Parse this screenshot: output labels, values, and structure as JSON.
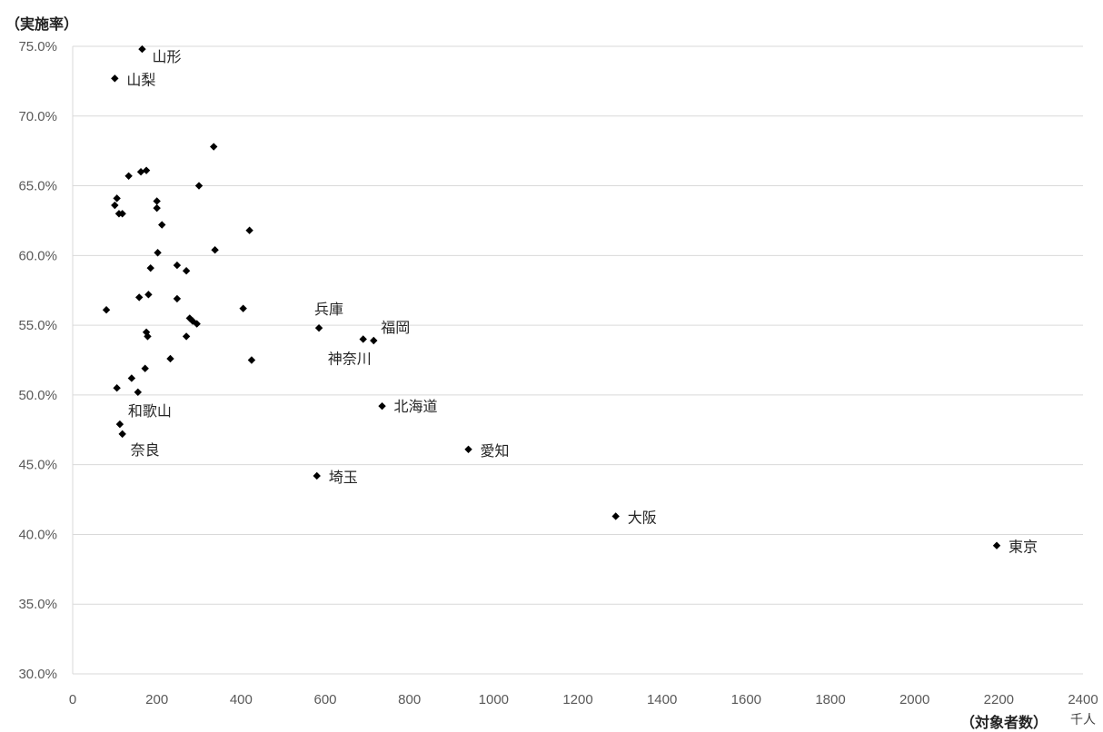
{
  "chart_data": {
    "type": "scatter",
    "ylabel": "（実施率）",
    "xlabel": "（対象者数）",
    "xunit": "千人",
    "xlim": [
      0,
      2400
    ],
    "ylim": [
      30.0,
      75.0
    ],
    "xticks": [
      0,
      200,
      400,
      600,
      800,
      1000,
      1200,
      1400,
      1600,
      1800,
      2000,
      2200,
      2400
    ],
    "yticks": [
      30.0,
      35.0,
      40.0,
      45.0,
      50.0,
      55.0,
      60.0,
      65.0,
      70.0,
      75.0
    ],
    "ytick_suffix": "%",
    "grid": true,
    "marker": "diamond",
    "marker_color": "#000000",
    "points": [
      {
        "x": 165,
        "y": 74.8,
        "label": "山形"
      },
      {
        "x": 100,
        "y": 72.7,
        "label": "山梨"
      },
      {
        "x": 585,
        "y": 54.8,
        "label": "兵庫"
      },
      {
        "x": 690,
        "y": 54.0,
        "label": "神奈川"
      },
      {
        "x": 715,
        "y": 53.9,
        "label": "福岡"
      },
      {
        "x": 735,
        "y": 49.2,
        "label": "北海道"
      },
      {
        "x": 112,
        "y": 47.9,
        "label": "和歌山"
      },
      {
        "x": 118,
        "y": 47.2,
        "label": "奈良"
      },
      {
        "x": 940,
        "y": 46.1,
        "label": "愛知"
      },
      {
        "x": 580,
        "y": 44.2,
        "label": "埼玉"
      },
      {
        "x": 1290,
        "y": 41.3,
        "label": "大阪"
      },
      {
        "x": 2195,
        "y": 39.2,
        "label": "東京"
      },
      {
        "x": 335,
        "y": 67.8
      },
      {
        "x": 175,
        "y": 66.1
      },
      {
        "x": 162,
        "y": 66.0
      },
      {
        "x": 133,
        "y": 65.7
      },
      {
        "x": 300,
        "y": 65.0
      },
      {
        "x": 105,
        "y": 64.1
      },
      {
        "x": 200,
        "y": 63.9
      },
      {
        "x": 100,
        "y": 63.6
      },
      {
        "x": 200,
        "y": 63.4
      },
      {
        "x": 110,
        "y": 63.0
      },
      {
        "x": 118,
        "y": 63.0
      },
      {
        "x": 212,
        "y": 62.2
      },
      {
        "x": 420,
        "y": 61.8
      },
      {
        "x": 338,
        "y": 60.4
      },
      {
        "x": 202,
        "y": 60.2
      },
      {
        "x": 248,
        "y": 59.3
      },
      {
        "x": 185,
        "y": 59.1
      },
      {
        "x": 270,
        "y": 58.9
      },
      {
        "x": 180,
        "y": 57.2
      },
      {
        "x": 158,
        "y": 57.0
      },
      {
        "x": 248,
        "y": 56.9
      },
      {
        "x": 405,
        "y": 56.2
      },
      {
        "x": 80,
        "y": 56.1
      },
      {
        "x": 278,
        "y": 55.5
      },
      {
        "x": 285,
        "y": 55.3
      },
      {
        "x": 295,
        "y": 55.1
      },
      {
        "x": 175,
        "y": 54.5
      },
      {
        "x": 178,
        "y": 54.2
      },
      {
        "x": 270,
        "y": 54.2
      },
      {
        "x": 232,
        "y": 52.6
      },
      {
        "x": 425,
        "y": 52.5
      },
      {
        "x": 172,
        "y": 51.9
      },
      {
        "x": 140,
        "y": 51.2
      },
      {
        "x": 105,
        "y": 50.5
      },
      {
        "x": 155,
        "y": 50.2
      }
    ]
  }
}
